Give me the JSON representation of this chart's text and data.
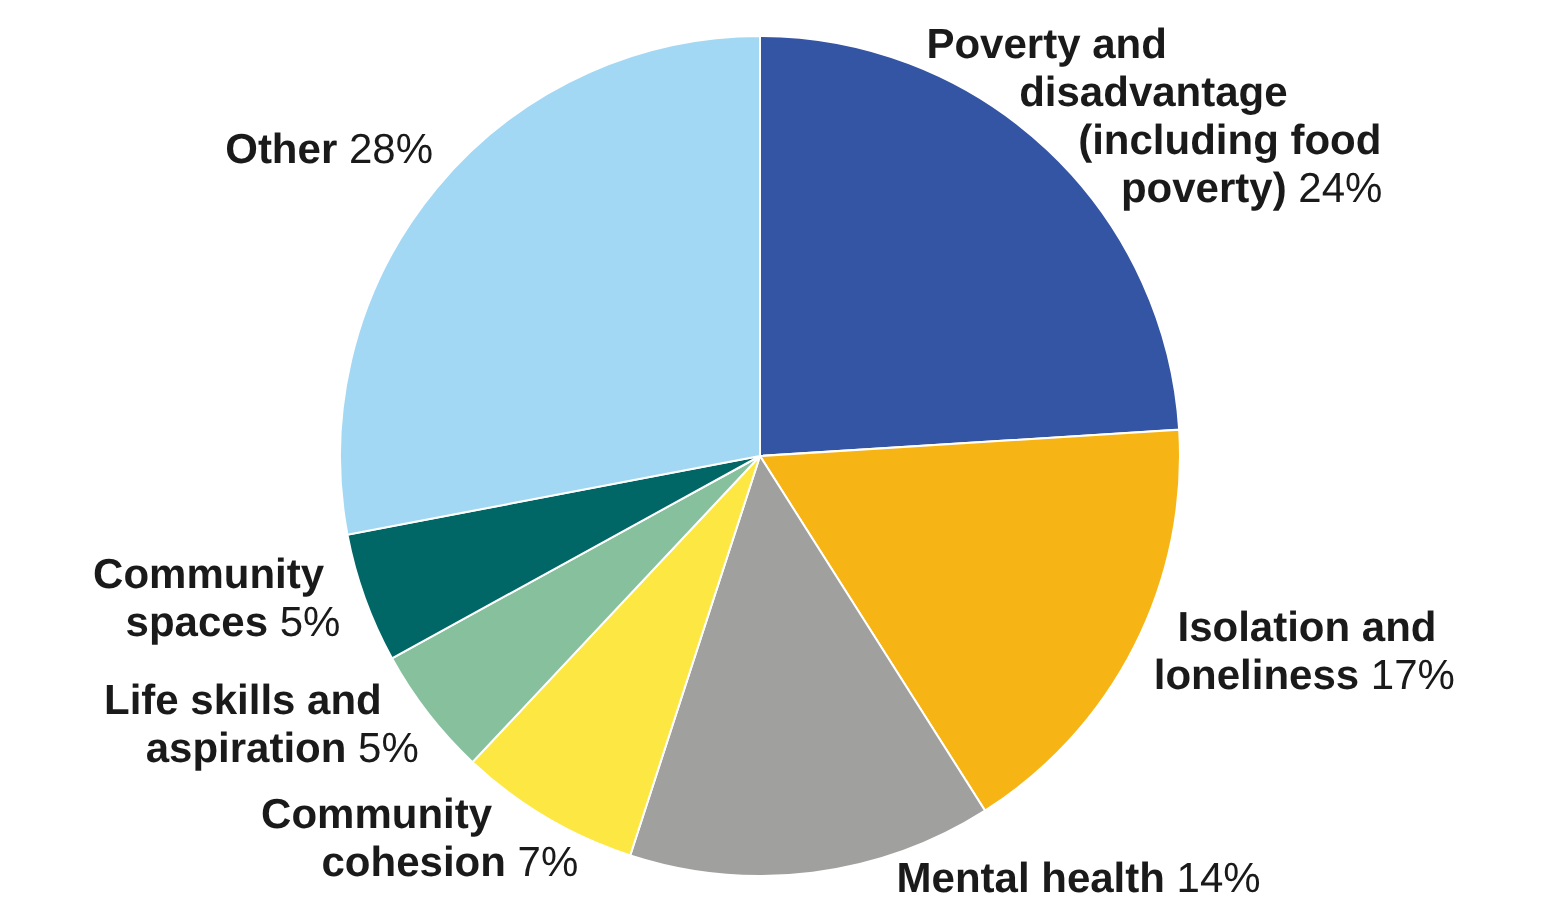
{
  "chart_data": {
    "type": "pie",
    "categories": [
      "Poverty and disadvantage (including food poverty)",
      "Isolation and loneliness",
      "Mental health",
      "Community cohesion",
      "Life skills and aspiration",
      "Community spaces",
      "Other"
    ],
    "values": [
      24,
      17,
      14,
      7,
      5,
      5,
      28
    ],
    "colors": [
      "#3454a4",
      "#f7b515",
      "#a0a09e",
      "#fde843",
      "#86c09c",
      "#006666",
      "#a3d8f5"
    ],
    "value_labels": [
      "24%",
      "17%",
      "14%",
      "7%",
      "5%",
      "5%",
      "28%"
    ]
  }
}
